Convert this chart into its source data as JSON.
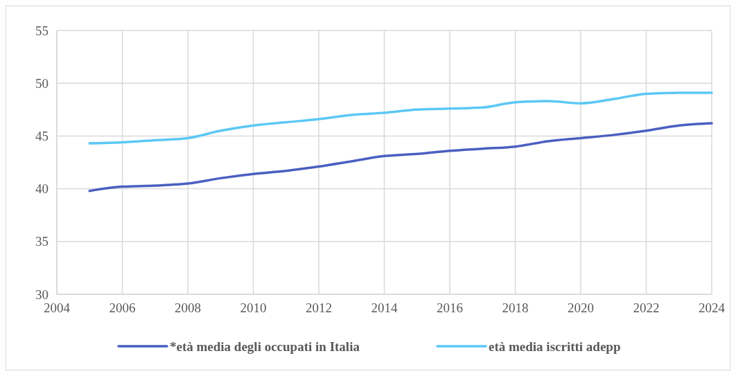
{
  "chart_data": {
    "type": "line",
    "x": [
      2005,
      2006,
      2007,
      2008,
      2009,
      2010,
      2011,
      2012,
      2013,
      2014,
      2015,
      2016,
      2017,
      2018,
      2019,
      2020,
      2021,
      2022,
      2023,
      2024
    ],
    "series": [
      {
        "name": "*età media degli occupati in Italia",
        "color": "#4a5fc1",
        "values": [
          39.8,
          40.2,
          40.3,
          40.5,
          41.0,
          41.4,
          41.7,
          42.1,
          42.6,
          43.1,
          43.3,
          43.6,
          43.8,
          44.0,
          44.5,
          44.8,
          45.1,
          45.5,
          46.0,
          46.2
        ]
      },
      {
        "name": "età media iscritti adepp",
        "color": "#5bc8f5",
        "values": [
          44.3,
          44.4,
          44.6,
          44.8,
          45.5,
          46.0,
          46.3,
          46.6,
          47.0,
          47.2,
          47.5,
          47.6,
          47.7,
          48.2,
          48.3,
          48.1,
          48.5,
          49.0,
          49.1,
          49.1
        ]
      }
    ],
    "xlim": [
      2004,
      2024
    ],
    "xticks": [
      2004,
      2006,
      2008,
      2010,
      2012,
      2014,
      2016,
      2018,
      2020,
      2022,
      2024
    ],
    "ylim": [
      30,
      55
    ],
    "yticks": [
      30,
      35,
      40,
      45,
      50,
      55
    ],
    "grid": true,
    "legend": "bottom",
    "marker": "none",
    "line_style": "solid"
  }
}
